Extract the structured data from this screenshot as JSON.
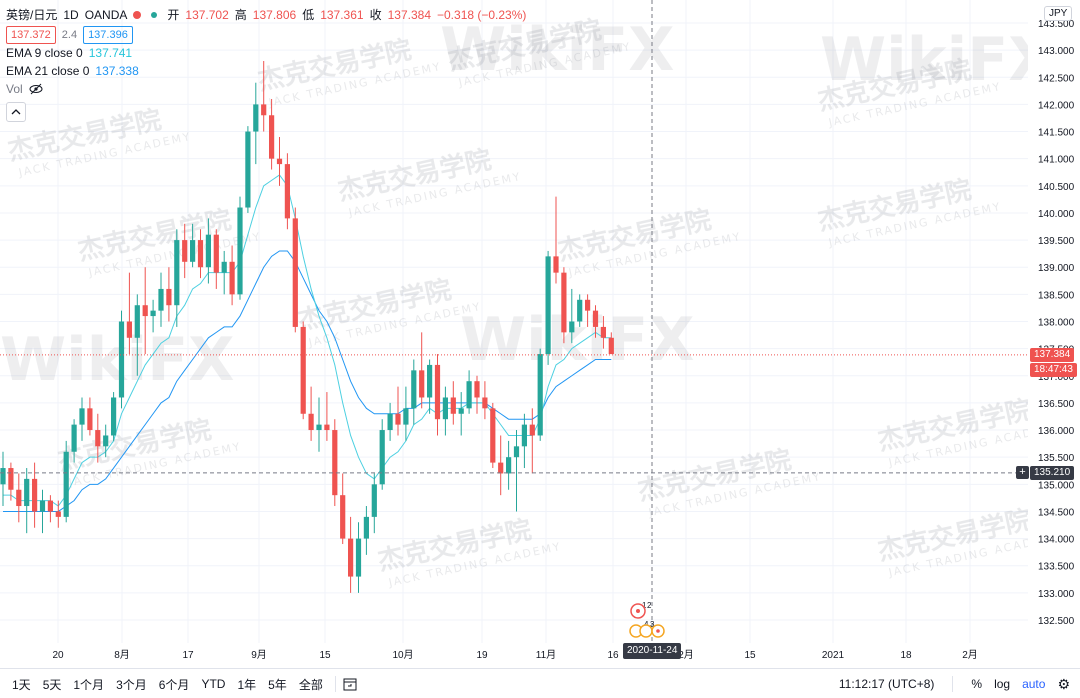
{
  "legend": {
    "symbol": "英镑/日元",
    "interval": "1D",
    "source": "OANDA",
    "open_label": "开",
    "open_value": "137.702",
    "high_label": "高",
    "high_value": "137.806",
    "low_label": "低",
    "low_value": "137.361",
    "close_label": "收",
    "close_value": "137.384",
    "change": "−0.318 (−0.23%)",
    "bid": "137.372",
    "spread": "2.4",
    "ask": "137.396",
    "ema9_label": "EMA 9 close 0",
    "ema9_value": "137.741",
    "ema21_label": "EMA 21 close 0",
    "ema21_value": "137.338",
    "vol_label": "Vol"
  },
  "price_axis": {
    "currency": "JPY",
    "ticks": [
      "143.500",
      "143.000",
      "142.500",
      "142.000",
      "141.500",
      "141.000",
      "140.500",
      "140.000",
      "139.500",
      "139.000",
      "138.500",
      "138.000",
      "137.500",
      "137.000",
      "136.500",
      "136.000",
      "135.500",
      "135.000",
      "134.500",
      "134.000",
      "133.500",
      "133.000",
      "132.500"
    ],
    "last_price": "137.384",
    "countdown": "18:47:43",
    "crosshair_price": "135.210"
  },
  "time_axis": {
    "ticks": [
      "20",
      "8月",
      "17",
      "9月",
      "15",
      "10月",
      "19",
      "11月",
      "16",
      "2月",
      "15",
      "2021",
      "18",
      "2月"
    ],
    "crosshair_date": "2020-11-24"
  },
  "events": {
    "marker_a": "1",
    "marker_b": "2",
    "marker_c": "4",
    "marker_d": "3"
  },
  "watermark": {
    "brand": "WikiFX",
    "cn": "杰克交易学院",
    "en": "JACK TRADING ACADEMY"
  },
  "toolbar": {
    "ranges": [
      "1天",
      "5天",
      "1个月",
      "3个月",
      "6个月",
      "YTD",
      "1年",
      "5年",
      "全部"
    ],
    "goto_icon": "goto-date-icon",
    "clock": "11:12:17 (UTC+8)",
    "percent": "%",
    "log": "log",
    "auto": "auto",
    "settings_icon": "gear-icon"
  },
  "colors": {
    "up": "#26a69a",
    "down": "#ef5350",
    "ema9": "#4dd0e1",
    "ema21": "#2196f3"
  },
  "chart_data": {
    "type": "candlestick",
    "ylim": [
      132.2,
      143.7
    ],
    "series": [
      {
        "name": "GBPJPY",
        "ohlc": [
          [
            135.0,
            135.6,
            134.6,
            135.3
          ],
          [
            135.3,
            135.4,
            134.7,
            134.9
          ],
          [
            134.9,
            135.2,
            134.3,
            134.6
          ],
          [
            134.6,
            135.3,
            134.1,
            135.1
          ],
          [
            135.1,
            135.4,
            134.2,
            134.5
          ],
          [
            134.5,
            134.9,
            134.1,
            134.7
          ],
          [
            134.7,
            134.8,
            134.3,
            134.5
          ],
          [
            134.5,
            134.7,
            134.2,
            134.4
          ],
          [
            134.4,
            135.8,
            134.3,
            135.6
          ],
          [
            135.6,
            136.2,
            135.4,
            136.1
          ],
          [
            136.1,
            136.6,
            135.8,
            136.4
          ],
          [
            136.4,
            136.6,
            135.9,
            136.0
          ],
          [
            136.0,
            136.3,
            135.4,
            135.7
          ],
          [
            135.7,
            136.1,
            135.5,
            135.9
          ],
          [
            135.9,
            136.7,
            135.8,
            136.6
          ],
          [
            136.6,
            138.2,
            136.4,
            138.0
          ],
          [
            138.0,
            138.9,
            137.4,
            137.7
          ],
          [
            137.7,
            138.5,
            137.0,
            138.3
          ],
          [
            138.3,
            139.0,
            137.4,
            138.1
          ],
          [
            138.1,
            138.4,
            137.8,
            138.2
          ],
          [
            138.2,
            138.9,
            137.9,
            138.6
          ],
          [
            138.6,
            139.0,
            138.0,
            138.3
          ],
          [
            138.3,
            139.7,
            137.9,
            139.5
          ],
          [
            139.5,
            139.8,
            138.8,
            139.1
          ],
          [
            139.1,
            139.8,
            139.0,
            139.5
          ],
          [
            139.5,
            139.7,
            138.8,
            139.0
          ],
          [
            139.0,
            139.9,
            138.7,
            139.6
          ],
          [
            139.6,
            139.7,
            138.6,
            138.9
          ],
          [
            138.9,
            139.3,
            138.5,
            139.1
          ],
          [
            139.1,
            139.4,
            138.3,
            138.5
          ],
          [
            138.5,
            140.3,
            138.4,
            140.1
          ],
          [
            140.1,
            141.6,
            140.0,
            141.5
          ],
          [
            141.5,
            142.4,
            140.9,
            142.0
          ],
          [
            142.0,
            142.8,
            141.5,
            141.8
          ],
          [
            141.8,
            142.1,
            140.8,
            141.0
          ],
          [
            141.0,
            141.4,
            140.5,
            140.9
          ],
          [
            140.9,
            141.1,
            139.7,
            139.9
          ],
          [
            139.9,
            140.1,
            137.8,
            137.9
          ],
          [
            137.9,
            138.0,
            136.2,
            136.3
          ],
          [
            136.3,
            136.8,
            135.8,
            136.0
          ],
          [
            136.0,
            136.6,
            135.6,
            136.1
          ],
          [
            136.1,
            136.7,
            135.8,
            136.0
          ],
          [
            136.0,
            136.2,
            134.6,
            134.8
          ],
          [
            134.8,
            135.2,
            133.9,
            134.0
          ],
          [
            134.0,
            134.4,
            133.0,
            133.3
          ],
          [
            133.3,
            134.3,
            133.0,
            134.0
          ],
          [
            134.0,
            134.6,
            133.7,
            134.4
          ],
          [
            134.4,
            135.2,
            134.1,
            135.0
          ],
          [
            135.0,
            136.2,
            134.9,
            136.0
          ],
          [
            136.0,
            136.5,
            135.8,
            136.3
          ],
          [
            136.3,
            136.8,
            135.9,
            136.1
          ],
          [
            136.1,
            136.8,
            135.8,
            136.4
          ],
          [
            136.4,
            137.3,
            136.1,
            137.1
          ],
          [
            137.1,
            137.8,
            136.4,
            136.6
          ],
          [
            136.6,
            137.3,
            136.3,
            137.2
          ],
          [
            137.2,
            137.4,
            135.9,
            136.2
          ],
          [
            136.2,
            136.8,
            135.9,
            136.6
          ],
          [
            136.6,
            136.9,
            136.1,
            136.3
          ],
          [
            136.3,
            136.7,
            135.9,
            136.4
          ],
          [
            136.4,
            137.1,
            136.3,
            136.9
          ],
          [
            136.9,
            137.0,
            136.3,
            136.6
          ],
          [
            136.6,
            136.9,
            136.2,
            136.4
          ],
          [
            136.4,
            136.5,
            135.3,
            135.4
          ],
          [
            135.4,
            135.9,
            134.8,
            135.2
          ],
          [
            135.2,
            135.8,
            134.9,
            135.5
          ],
          [
            135.5,
            136.0,
            134.5,
            135.7
          ],
          [
            135.7,
            136.3,
            135.3,
            136.1
          ],
          [
            136.1,
            136.4,
            135.2,
            135.9
          ],
          [
            135.9,
            137.5,
            135.8,
            137.4
          ],
          [
            137.4,
            139.3,
            137.2,
            139.2
          ],
          [
            139.2,
            140.3,
            138.7,
            138.9
          ],
          [
            138.9,
            139.0,
            137.6,
            137.8
          ],
          [
            137.8,
            138.6,
            137.6,
            138.0
          ],
          [
            138.0,
            138.5,
            137.9,
            138.4
          ],
          [
            138.4,
            138.5,
            137.9,
            138.2
          ],
          [
            138.2,
            138.3,
            137.7,
            137.9
          ],
          [
            137.9,
            138.1,
            137.5,
            137.7
          ],
          [
            137.7,
            137.8,
            137.4,
            137.4
          ]
        ]
      },
      {
        "name": "EMA 9 close 0",
        "values": [
          134.8,
          134.8,
          134.7,
          134.7,
          134.7,
          134.7,
          134.7,
          134.6,
          134.8,
          135.1,
          135.4,
          135.5,
          135.5,
          135.6,
          135.8,
          136.3,
          136.6,
          136.9,
          137.2,
          137.4,
          137.6,
          137.7,
          138.1,
          138.3,
          138.6,
          138.7,
          138.9,
          138.9,
          138.9,
          138.9,
          139.1,
          139.6,
          140.1,
          140.5,
          140.6,
          140.7,
          140.5,
          139.9,
          139.2,
          138.6,
          138.1,
          137.7,
          137.2,
          136.5,
          135.9,
          135.5,
          135.2,
          135.1,
          135.3,
          135.5,
          135.6,
          135.8,
          136.1,
          136.2,
          136.4,
          136.3,
          136.4,
          136.4,
          136.4,
          136.5,
          136.5,
          136.5,
          136.3,
          136.1,
          135.9,
          135.9,
          135.9,
          135.9,
          136.2,
          136.8,
          137.2,
          137.3,
          137.5,
          137.6,
          137.7,
          137.8,
          137.7,
          137.7
        ]
      },
      {
        "name": "EMA 21 close 0",
        "values": [
          134.5,
          134.5,
          134.5,
          134.5,
          134.5,
          134.5,
          134.5,
          134.5,
          134.6,
          134.7,
          134.9,
          135.0,
          135.0,
          135.1,
          135.3,
          135.5,
          135.7,
          135.9,
          136.1,
          136.3,
          136.5,
          136.6,
          136.9,
          137.1,
          137.3,
          137.5,
          137.7,
          137.8,
          137.9,
          137.9,
          138.1,
          138.4,
          138.7,
          139.0,
          139.2,
          139.3,
          139.3,
          139.1,
          138.8,
          138.5,
          138.2,
          138.0,
          137.7,
          137.3,
          136.9,
          136.6,
          136.4,
          136.3,
          136.3,
          136.3,
          136.3,
          136.4,
          136.4,
          136.5,
          136.5,
          136.5,
          136.5,
          136.5,
          136.5,
          136.5,
          136.5,
          136.5,
          136.4,
          136.3,
          136.2,
          136.2,
          136.2,
          136.2,
          136.3,
          136.6,
          136.8,
          136.9,
          137.0,
          137.1,
          137.2,
          137.3,
          137.3,
          137.3
        ]
      }
    ]
  }
}
